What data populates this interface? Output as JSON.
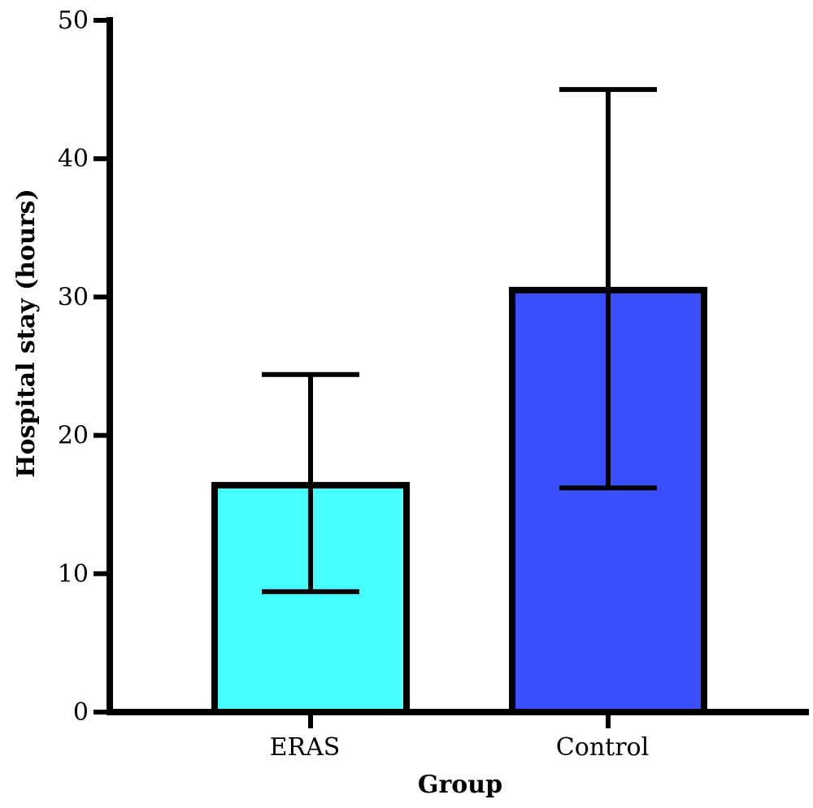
{
  "chart_data": {
    "type": "bar",
    "categories": [
      "ERAS",
      "Control"
    ],
    "values": [
      16.4,
      30.5
    ],
    "error_low": [
      8.7,
      16.2
    ],
    "error_high": [
      24.4,
      45.0
    ],
    "colors": [
      "#45FFFF",
      "#3A50FF"
    ],
    "xlabel": "Group",
    "ylabel": "Hospital stay (hours)",
    "ylim": [
      0,
      50
    ],
    "yticks": [
      0,
      10,
      20,
      30,
      40,
      50
    ],
    "grid": false,
    "legend": "none"
  }
}
